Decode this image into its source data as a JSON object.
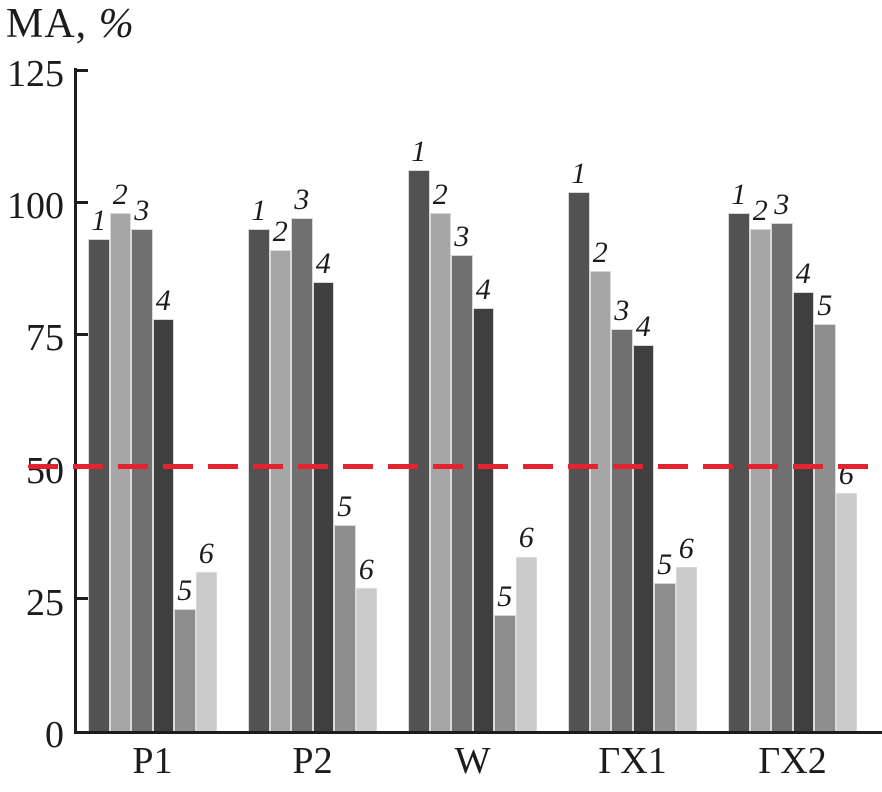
{
  "title_main": "MA, ",
  "title_percent": "%",
  "chart_data": {
    "type": "bar",
    "title": "MA, %",
    "ylabel": "MA, %",
    "xlabel": "",
    "ylim": [
      0,
      125
    ],
    "yticks": [
      0,
      25,
      50,
      75,
      100,
      125
    ],
    "grid": false,
    "legend_position": "none",
    "bar_label_style": "italic serif numeral above each bar",
    "categories": [
      "P1",
      "P2",
      "W",
      "ГХ1",
      "ГХ2"
    ],
    "series": [
      {
        "name": "1",
        "color": "#525252",
        "values": [
          93,
          95,
          106,
          102,
          98
        ]
      },
      {
        "name": "2",
        "color": "#a6a6a6",
        "values": [
          98,
          91,
          98,
          87,
          95
        ]
      },
      {
        "name": "3",
        "color": "#707070",
        "values": [
          95,
          97,
          90,
          76,
          96
        ]
      },
      {
        "name": "4",
        "color": "#3f3f3f",
        "values": [
          78,
          85,
          80,
          73,
          83
        ]
      },
      {
        "name": "5",
        "color": "#8e8e8e",
        "values": [
          23,
          39,
          22,
          28,
          77
        ]
      },
      {
        "name": "6",
        "color": "#cbcbcb",
        "values": [
          30,
          27,
          33,
          31,
          45
        ]
      }
    ],
    "reference_line": {
      "value": 50,
      "color": "#e42330",
      "style": "dashed"
    }
  },
  "colors": {
    "axis": "#1c1c1c",
    "text": "#1c1c1c",
    "bar_outline": "#d9d9d9",
    "reference": "#e42330",
    "background": "#ffffff"
  }
}
